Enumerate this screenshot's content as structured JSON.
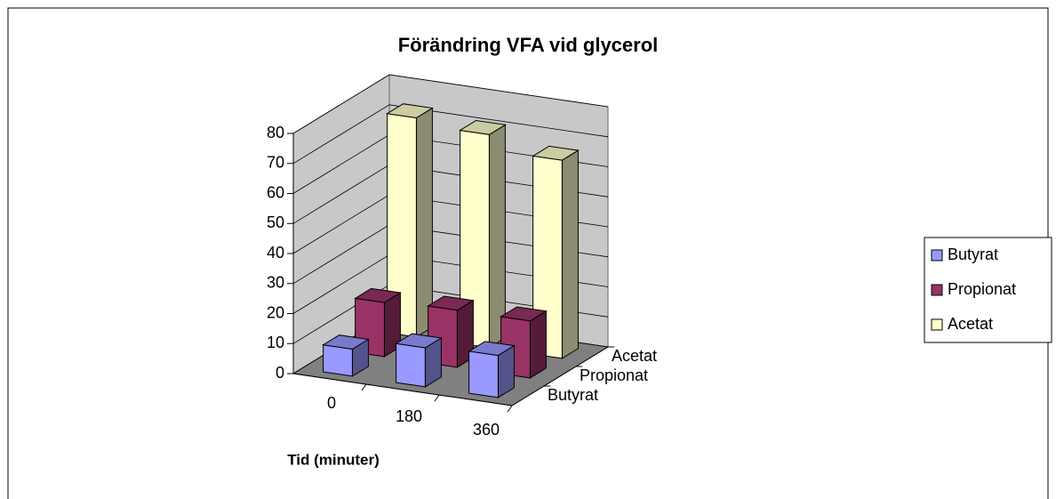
{
  "chart_data": {
    "type": "bar3d",
    "title": "Förändring VFA vid glycerol",
    "x_label": "Tid (minuter)",
    "categories": [
      "0",
      "180",
      "360"
    ],
    "series": [
      {
        "name": "Butyrat",
        "color": "#9999ff",
        "values": [
          9,
          13,
          14
        ]
      },
      {
        "name": "Propionat",
        "color": "#993366",
        "values": [
          18,
          19,
          19
        ]
      },
      {
        "name": "Acetat",
        "color": "#ffffcc",
        "values": [
          73,
          71,
          66
        ]
      }
    ],
    "ylim": [
      0,
      80
    ],
    "yticks": [
      0,
      10,
      20,
      30,
      40,
      50,
      60,
      70,
      80
    ],
    "grid": true,
    "legend": "right"
  }
}
